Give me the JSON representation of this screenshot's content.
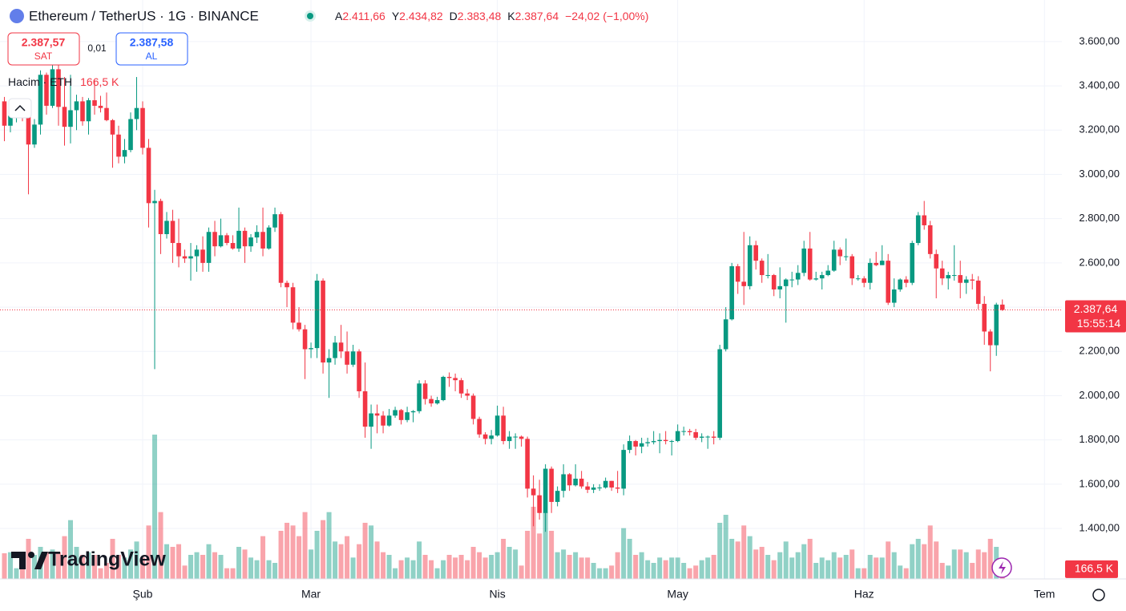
{
  "header": {
    "symbol": "Ethereum / TetherUS · 1G · BINANCE",
    "o_key": "A",
    "o": "2.411,66",
    "h_key": "Y",
    "h": "2.434,82",
    "l_key": "D",
    "l": "2.383,48",
    "c_key": "K",
    "c": "2.387,64",
    "change": "−24,02 (−1,00%)"
  },
  "trade": {
    "sell_price": "2.387,57",
    "sell": "SAT",
    "spread": "0,01",
    "buy_price": "2.387,58",
    "buy": "AL"
  },
  "volume_legend": {
    "title": "Hacim · ETH",
    "value": "166,5 K"
  },
  "brand": "TradingView",
  "chart_data": {
    "type": "candlestick",
    "up_color": "#089981",
    "down_color": "#f23645",
    "xlim": [
      -0.73,
      175.9
    ],
    "ylim": [
      1172,
      3788
    ],
    "volume_lim": [
      0,
      3000000
    ],
    "grid": true,
    "xticks": [
      {
        "value": 23,
        "label": "Şub"
      },
      {
        "value": 51,
        "label": "Mar"
      },
      {
        "value": 82,
        "label": "Nis"
      },
      {
        "value": 112,
        "label": "May"
      },
      {
        "value": 143,
        "label": "Haz"
      },
      {
        "value": 173,
        "label": "Tem"
      }
    ],
    "yticks": [
      {
        "value": 1400,
        "label": "1.400,00"
      },
      {
        "value": 1600,
        "label": "1.600,00"
      },
      {
        "value": 1800,
        "label": "1.800,00"
      },
      {
        "value": 2000,
        "label": "2.000,00"
      },
      {
        "value": 2200,
        "label": "2.200,00"
      },
      {
        "value": 2400,
        "label": "2.400,00"
      },
      {
        "value": 2600,
        "label": "2.600,00"
      },
      {
        "value": 2800,
        "label": "2.800,00"
      },
      {
        "value": 3000,
        "label": "3.000,00"
      },
      {
        "value": 3200,
        "label": "3.200,00"
      },
      {
        "value": 3400,
        "label": "3.400,00"
      },
      {
        "value": 3600,
        "label": "3.600,00"
      }
    ],
    "last_price": 2387.64,
    "last_price_label": "2.387,64",
    "countdown": "15:55:14",
    "last_volume_label": "166,5 K",
    "ohlc": [
      [
        3330,
        3350,
        3150,
        3220
      ],
      [
        3220,
        3320,
        3190,
        3265
      ],
      [
        3265,
        3290,
        3235,
        3280
      ],
      [
        3280,
        3310,
        3240,
        3265
      ],
      [
        3265,
        3335,
        2910,
        3135
      ],
      [
        3135,
        3250,
        3120,
        3225
      ],
      [
        3225,
        3470,
        3180,
        3450
      ],
      [
        3450,
        3460,
        3270,
        3310
      ],
      [
        3310,
        3525,
        3300,
        3475
      ],
      [
        3475,
        3495,
        3220,
        3305
      ],
      [
        3305,
        3440,
        3130,
        3215
      ],
      [
        3215,
        3450,
        3140,
        3290
      ],
      [
        3290,
        3360,
        3200,
        3330
      ],
      [
        3330,
        3350,
        3220,
        3240
      ],
      [
        3240,
        3345,
        3180,
        3335
      ],
      [
        3335,
        3425,
        3270,
        3310
      ],
      [
        3310,
        3355,
        3280,
        3300
      ],
      [
        3300,
        3370,
        3240,
        3245
      ],
      [
        3245,
        3250,
        3030,
        3180
      ],
      [
        3180,
        3220,
        3050,
        3080
      ],
      [
        3080,
        3160,
        3050,
        3110
      ],
      [
        3110,
        3280,
        3100,
        3250
      ],
      [
        3250,
        3440,
        3200,
        3300
      ],
      [
        3300,
        3330,
        3090,
        3120
      ],
      [
        3120,
        3160,
        2760,
        2870
      ],
      [
        2870,
        2930,
        2120,
        2880
      ],
      [
        2880,
        2890,
        2640,
        2730
      ],
      [
        2730,
        2830,
        2710,
        2790
      ],
      [
        2790,
        2840,
        2600,
        2690
      ],
      [
        2690,
        2800,
        2580,
        2630
      ],
      [
        2630,
        2660,
        2600,
        2620
      ],
      [
        2620,
        2690,
        2520,
        2630
      ],
      [
        2630,
        2680,
        2560,
        2660
      ],
      [
        2660,
        2720,
        2560,
        2600
      ],
      [
        2600,
        2760,
        2560,
        2740
      ],
      [
        2740,
        2790,
        2630,
        2675
      ],
      [
        2675,
        2800,
        2670,
        2725
      ],
      [
        2725,
        2735,
        2680,
        2690
      ],
      [
        2690,
        2725,
        2660,
        2665
      ],
      [
        2665,
        2850,
        2650,
        2745
      ],
      [
        2745,
        2760,
        2600,
        2675
      ],
      [
        2675,
        2730,
        2650,
        2715
      ],
      [
        2715,
        2770,
        2690,
        2740
      ],
      [
        2740,
        2850,
        2630,
        2665
      ],
      [
        2665,
        2770,
        2660,
        2760
      ],
      [
        2760,
        2850,
        2740,
        2820
      ],
      [
        2820,
        2830,
        2490,
        2510
      ],
      [
        2510,
        2520,
        2400,
        2490
      ],
      [
        2490,
        2510,
        2300,
        2330
      ],
      [
        2330,
        2400,
        2290,
        2300
      ],
      [
        2300,
        2320,
        2075,
        2210
      ],
      [
        2210,
        2240,
        2170,
        2215
      ],
      [
        2215,
        2550,
        2170,
        2520
      ],
      [
        2520,
        2530,
        2100,
        2150
      ],
      [
        2150,
        2210,
        1990,
        2170
      ],
      [
        2170,
        2270,
        2140,
        2240
      ],
      [
        2240,
        2320,
        2170,
        2200
      ],
      [
        2200,
        2290,
        2100,
        2140
      ],
      [
        2140,
        2230,
        2130,
        2200
      ],
      [
        2200,
        2210,
        1990,
        2020
      ],
      [
        2020,
        2150,
        1810,
        1860
      ],
      [
        1860,
        1960,
        1760,
        1920
      ],
      [
        1920,
        1960,
        1830,
        1910
      ],
      [
        1910,
        1930,
        1830,
        1865
      ],
      [
        1865,
        1940,
        1860,
        1910
      ],
      [
        1910,
        1950,
        1900,
        1935
      ],
      [
        1935,
        1940,
        1870,
        1890
      ],
      [
        1890,
        1950,
        1880,
        1925
      ],
      [
        1925,
        1935,
        1880,
        1930
      ],
      [
        1930,
        2070,
        1920,
        2055
      ],
      [
        2055,
        2070,
        1960,
        1985
      ],
      [
        1985,
        2000,
        1950,
        1965
      ],
      [
        1965,
        1995,
        1960,
        1980
      ],
      [
        1980,
        2090,
        1975,
        2085
      ],
      [
        2085,
        2105,
        2040,
        2080
      ],
      [
        2080,
        2100,
        2020,
        2070
      ],
      [
        2070,
        2080,
        1990,
        2010
      ],
      [
        2010,
        2030,
        1980,
        2000
      ],
      [
        2000,
        2010,
        1870,
        1895
      ],
      [
        1895,
        1905,
        1810,
        1825
      ],
      [
        1825,
        1835,
        1780,
        1805
      ],
      [
        1805,
        1845,
        1780,
        1820
      ],
      [
        1820,
        1955,
        1815,
        1910
      ],
      [
        1910,
        1950,
        1780,
        1795
      ],
      [
        1795,
        1840,
        1760,
        1815
      ],
      [
        1815,
        1830,
        1760,
        1815
      ],
      [
        1815,
        1820,
        1770,
        1805
      ],
      [
        1805,
        1815,
        1540,
        1580
      ],
      [
        1580,
        1640,
        1410,
        1550
      ],
      [
        1550,
        1620,
        1440,
        1470
      ],
      [
        1470,
        1690,
        1385,
        1670
      ],
      [
        1670,
        1680,
        1470,
        1520
      ],
      [
        1520,
        1590,
        1500,
        1570
      ],
      [
        1570,
        1690,
        1540,
        1645
      ],
      [
        1645,
        1650,
        1570,
        1595
      ],
      [
        1595,
        1690,
        1590,
        1625
      ],
      [
        1625,
        1660,
        1580,
        1590
      ],
      [
        1590,
        1610,
        1560,
        1575
      ],
      [
        1575,
        1600,
        1560,
        1585
      ],
      [
        1585,
        1600,
        1570,
        1585
      ],
      [
        1585,
        1630,
        1580,
        1615
      ],
      [
        1615,
        1615,
        1570,
        1585
      ],
      [
        1585,
        1660,
        1560,
        1580
      ],
      [
        1580,
        1780,
        1550,
        1755
      ],
      [
        1755,
        1820,
        1740,
        1795
      ],
      [
        1795,
        1800,
        1730,
        1770
      ],
      [
        1770,
        1810,
        1740,
        1785
      ],
      [
        1785,
        1810,
        1770,
        1790
      ],
      [
        1790,
        1840,
        1780,
        1795
      ],
      [
        1795,
        1830,
        1740,
        1800
      ],
      [
        1800,
        1840,
        1780,
        1795
      ],
      [
        1795,
        1800,
        1730,
        1795
      ],
      [
        1795,
        1870,
        1790,
        1840
      ],
      [
        1840,
        1860,
        1820,
        1840
      ],
      [
        1840,
        1850,
        1820,
        1835
      ],
      [
        1835,
        1850,
        1800,
        1810
      ],
      [
        1810,
        1830,
        1790,
        1815
      ],
      [
        1815,
        1820,
        1760,
        1815
      ],
      [
        1815,
        1840,
        1780,
        1810
      ],
      [
        1810,
        2230,
        1800,
        2210
      ],
      [
        2210,
        2400,
        2200,
        2345
      ],
      [
        2345,
        2600,
        2340,
        2585
      ],
      [
        2585,
        2595,
        2460,
        2515
      ],
      [
        2515,
        2740,
        2410,
        2495
      ],
      [
        2495,
        2720,
        2480,
        2680
      ],
      [
        2680,
        2700,
        2570,
        2610
      ],
      [
        2610,
        2620,
        2510,
        2545
      ],
      [
        2545,
        2640,
        2530,
        2545
      ],
      [
        2545,
        2550,
        2450,
        2480
      ],
      [
        2480,
        2580,
        2440,
        2495
      ],
      [
        2495,
        2530,
        2330,
        2525
      ],
      [
        2525,
        2560,
        2490,
        2525
      ],
      [
        2525,
        2590,
        2500,
        2555
      ],
      [
        2555,
        2700,
        2540,
        2665
      ],
      [
        2665,
        2740,
        2520,
        2525
      ],
      [
        2525,
        2560,
        2520,
        2530
      ],
      [
        2530,
        2560,
        2480,
        2545
      ],
      [
        2545,
        2590,
        2540,
        2565
      ],
      [
        2565,
        2700,
        2560,
        2660
      ],
      [
        2660,
        2670,
        2590,
        2630
      ],
      [
        2630,
        2710,
        2610,
        2630
      ],
      [
        2630,
        2640,
        2500,
        2530
      ],
      [
        2530,
        2545,
        2520,
        2530
      ],
      [
        2530,
        2540,
        2490,
        2510
      ],
      [
        2510,
        2620,
        2480,
        2600
      ],
      [
        2600,
        2650,
        2585,
        2590
      ],
      [
        2590,
        2680,
        2590,
        2610
      ],
      [
        2610,
        2640,
        2410,
        2420
      ],
      [
        2420,
        2530,
        2400,
        2480
      ],
      [
        2480,
        2530,
        2470,
        2525
      ],
      [
        2525,
        2540,
        2490,
        2510
      ],
      [
        2510,
        2700,
        2500,
        2690
      ],
      [
        2690,
        2830,
        2680,
        2815
      ],
      [
        2815,
        2880,
        2750,
        2770
      ],
      [
        2770,
        2790,
        2620,
        2640
      ],
      [
        2640,
        2660,
        2440,
        2575
      ],
      [
        2575,
        2610,
        2500,
        2530
      ],
      [
        2530,
        2560,
        2480,
        2545
      ],
      [
        2545,
        2680,
        2520,
        2545
      ],
      [
        2545,
        2610,
        2440,
        2510
      ],
      [
        2510,
        2540,
        2460,
        2525
      ],
      [
        2525,
        2550,
        2480,
        2520
      ],
      [
        2520,
        2540,
        2390,
        2415
      ],
      [
        2415,
        2450,
        2230,
        2290
      ],
      [
        2290,
        2300,
        2110,
        2228
      ],
      [
        2228,
        2420,
        2180,
        2411.66
      ],
      [
        2411.66,
        2434.82,
        2383.48,
        2387.64
      ]
    ],
    "volume": [
      480000,
      500000,
      200000,
      220000,
      750000,
      450000,
      600000,
      500000,
      550000,
      500000,
      800000,
      1100000,
      600000,
      450000,
      500000,
      450000,
      200000,
      300000,
      750000,
      450000,
      400000,
      550000,
      700000,
      400000,
      1000000,
      2700000,
      1250000,
      650000,
      600000,
      650000,
      250000,
      450000,
      500000,
      450000,
      650000,
      500000,
      450000,
      200000,
      200000,
      600000,
      550000,
      400000,
      350000,
      800000,
      350000,
      300000,
      900000,
      1050000,
      1000000,
      800000,
      1250000,
      550000,
      900000,
      1100000,
      1250000,
      700000,
      650000,
      800000,
      400000,
      650000,
      1050000,
      1000000,
      700000,
      500000,
      450000,
      200000,
      350000,
      400000,
      350000,
      700000,
      450000,
      350000,
      200000,
      350000,
      450000,
      400000,
      450000,
      350000,
      600000,
      500000,
      400000,
      450000,
      500000,
      750000,
      600000,
      550000,
      250000,
      900000,
      1350000,
      850000,
      1250000,
      900000,
      500000,
      550000,
      450000,
      500000,
      400000,
      400000,
      300000,
      200000,
      200000,
      250000,
      500000,
      950000,
      750000,
      450000,
      500000,
      350000,
      300000,
      400000,
      350000,
      400000,
      400000,
      300000,
      200000,
      250000,
      350000,
      400000,
      450000,
      1050000,
      1200000,
      750000,
      700000,
      1000000,
      800000,
      550000,
      600000,
      450000,
      350000,
      500000,
      700000,
      400000,
      500000,
      650000,
      750000,
      300000,
      400000,
      350000,
      500000,
      400000,
      450000,
      550000,
      200000,
      200000,
      450000,
      400000,
      400000,
      700000,
      500000,
      250000,
      200000,
      650000,
      750000,
      650000,
      1000000,
      700000,
      300000,
      250000,
      550000,
      550000,
      500000,
      300000,
      550000,
      500000,
      750000,
      600000,
      166500
    ]
  }
}
